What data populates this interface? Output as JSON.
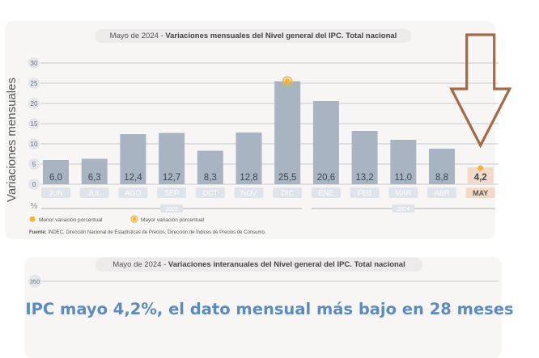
{
  "chart_data": {
    "type": "bar",
    "title": "Mayo de 2024 - Variaciones mensuales del Nivel general del IPC. Total nacional",
    "title_date": "Mayo de 2024 - ",
    "title_main": "Variaciones mensuales del Nivel general del IPC. Total nacional",
    "ylabel": "Variaciones mensuales",
    "yunit": "%",
    "ylim": [
      0,
      30
    ],
    "yticks": [
      0,
      5,
      10,
      15,
      20,
      25,
      30
    ],
    "categories": [
      "JUN",
      "JUL",
      "AGO",
      "SEP",
      "OCT",
      "NOV",
      "DIC",
      "ENE",
      "FEB",
      "MAR",
      "ABR",
      "MAY"
    ],
    "values": [
      6.0,
      6.3,
      12.4,
      12.7,
      8.3,
      12.8,
      25.5,
      20.6,
      13.2,
      11.0,
      8.8,
      4.2
    ],
    "value_labels": [
      "6,0",
      "6,3",
      "12,4",
      "12,7",
      "8,3",
      "12,8",
      "25,5",
      "20,6",
      "13,2",
      "11,0",
      "8,8",
      "4,2"
    ],
    "years": [
      "2023",
      "2024"
    ],
    "legend": [
      "Menor variación porcentual",
      "Mayor variación porcentual"
    ],
    "source": "Fuente: INDEC, Dirección Nacional de Estadísticas de Precios. Dirección de Índices de Precios de Consumo.",
    "source_bold": "Fuente:",
    "source_rest": " INDEC, Dirección Nacional de Estadísticas de Precios. Dirección de Índices de Precios de Consumo.",
    "colors": {
      "bar": "#a9b4c2",
      "bar_highlight": "#f3d9c7",
      "label_box": "#dfe3ea",
      "label_box_highlight": "#f3d9c7",
      "marker": "#f5b335",
      "grid": "#c6c9ce",
      "arrow": "#a56a45"
    }
  },
  "chart2": {
    "title_date": "Mayo de 2024 - ",
    "title_main": "Variaciones interanuales del Nivel general del IPC. Total nacional",
    "ytick_top": "350"
  },
  "headline": "IPC mayo 4,2%, el dato mensual más bajo en 28 meses",
  "annotation": {
    "icon": "down-arrow-outline"
  }
}
